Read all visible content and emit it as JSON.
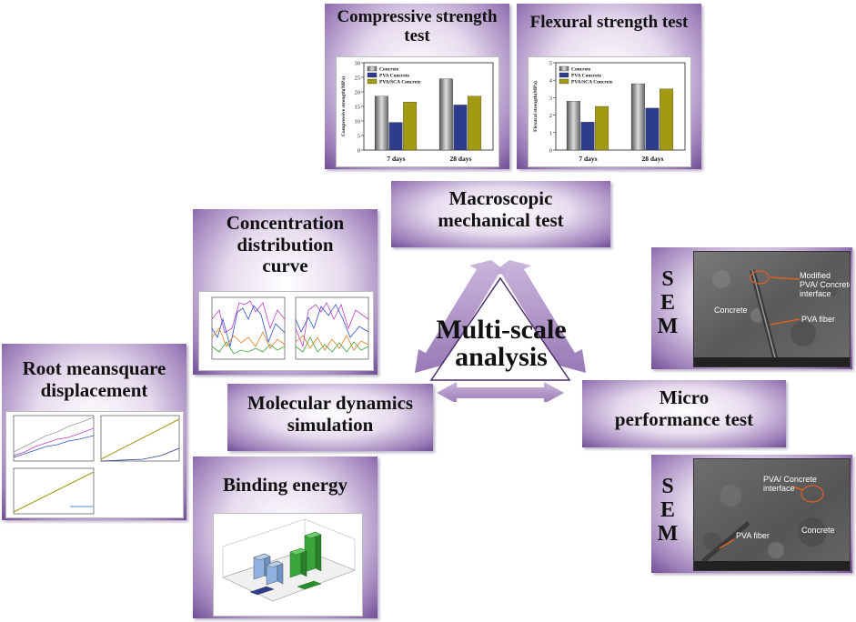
{
  "center": {
    "lines": [
      "Multi-scale",
      "analysis"
    ]
  },
  "panels": {
    "compressive": {
      "title": [
        "Compressive strength",
        "test"
      ]
    },
    "flexural": {
      "title": [
        "Flexural strength test"
      ]
    },
    "macroscopic": {
      "title": [
        "Macroscopic",
        "mechanical test"
      ]
    },
    "concentration": {
      "title": [
        "Concentration",
        "distribution",
        "curve"
      ]
    },
    "rms": {
      "title": [
        "Root meansquare",
        "displacement"
      ]
    },
    "molecular": {
      "title": [
        "Molecular dynamics",
        "simulation"
      ]
    },
    "binding": {
      "title": [
        "Binding energy"
      ]
    },
    "micro": {
      "title": [
        "Micro",
        "performance test"
      ]
    }
  },
  "sem1": {
    "letters": [
      "S",
      "E",
      "M"
    ],
    "labels": {
      "modified": "Modified\nPVA/ Concrete\ninterface",
      "concrete": "Concrete",
      "fiber": "PVA fiber"
    }
  },
  "sem2": {
    "letters": [
      "S",
      "E",
      "M"
    ],
    "labels": {
      "interface": "PVA/ Concrete\ninterface",
      "fiber": "PVA fiber",
      "concrete": "Concrete"
    }
  },
  "colors": {
    "concrete": "#8c8c8c",
    "pva": "#2d3d8c",
    "pva_sca": "#a39a14",
    "binding_green": "#3ba33b",
    "binding_blue": "#8fb2e0"
  },
  "chart_data": [
    {
      "type": "bar",
      "name": "compressive",
      "ylabel": "Compressive strength(MPa)",
      "categories": [
        "7 days",
        "28 days"
      ],
      "ylim": [
        0,
        30
      ],
      "yticks": [
        0,
        5,
        10,
        15,
        20,
        25,
        30
      ],
      "series": [
        {
          "name": "Concrete",
          "values": [
            18.5,
            24.5
          ]
        },
        {
          "name": "PVA Concrete",
          "values": [
            9.5,
            15.5
          ]
        },
        {
          "name": "PVA/SCA Concrete",
          "values": [
            16.5,
            18.5
          ]
        }
      ]
    },
    {
      "type": "bar",
      "name": "flexural",
      "ylabel": "Flexural strength(MPa)",
      "categories": [
        "7 days",
        "28 days"
      ],
      "ylim": [
        0,
        5
      ],
      "yticks": [
        0,
        1,
        2,
        3,
        4,
        5
      ],
      "series": [
        {
          "name": "Concrete",
          "values": [
            2.8,
            3.8
          ]
        },
        {
          "name": "PVA Concrete",
          "values": [
            1.6,
            2.4
          ]
        },
        {
          "name": "PVA/SCA Concrete",
          "values": [
            2.5,
            3.5
          ]
        }
      ]
    }
  ]
}
